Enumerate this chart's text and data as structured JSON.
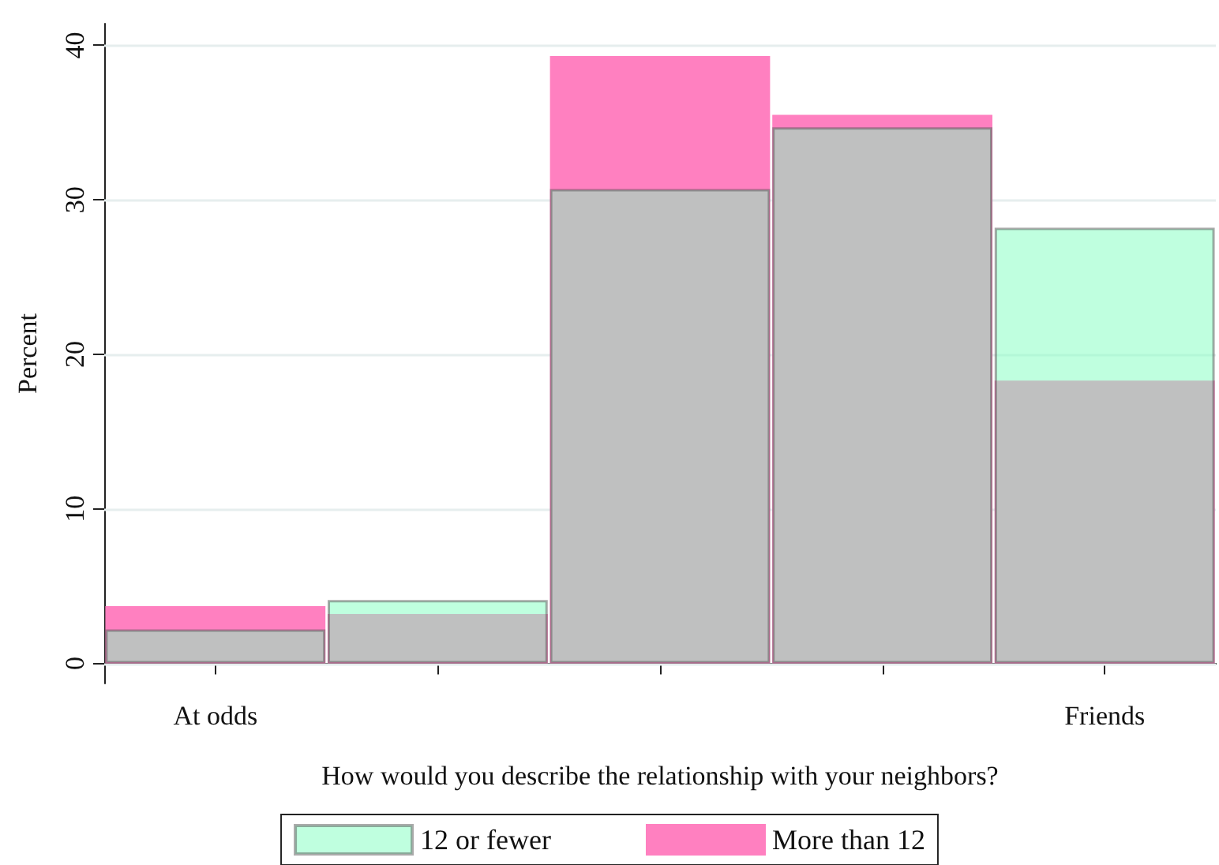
{
  "chart_data": {
    "type": "bar",
    "xlabel": "How would you describe the relationship with your neighbors?",
    "ylabel": "Percent",
    "categories": [
      "At odds",
      null,
      null,
      null,
      "Friends"
    ],
    "series": [
      {
        "name": "12 or fewer",
        "color": "#80ffbf",
        "values": [
          2.2,
          4.1,
          30.7,
          34.7,
          28.2
        ]
      },
      {
        "name": "More than 12",
        "color": "#ff80c0",
        "values": [
          3.7,
          3.2,
          39.3,
          35.5,
          18.3
        ]
      }
    ],
    "ylim": [
      -1.3,
      41.4
    ],
    "yticks": [
      0,
      10,
      20,
      30,
      40
    ],
    "grid": "y",
    "legend": "bottom"
  }
}
